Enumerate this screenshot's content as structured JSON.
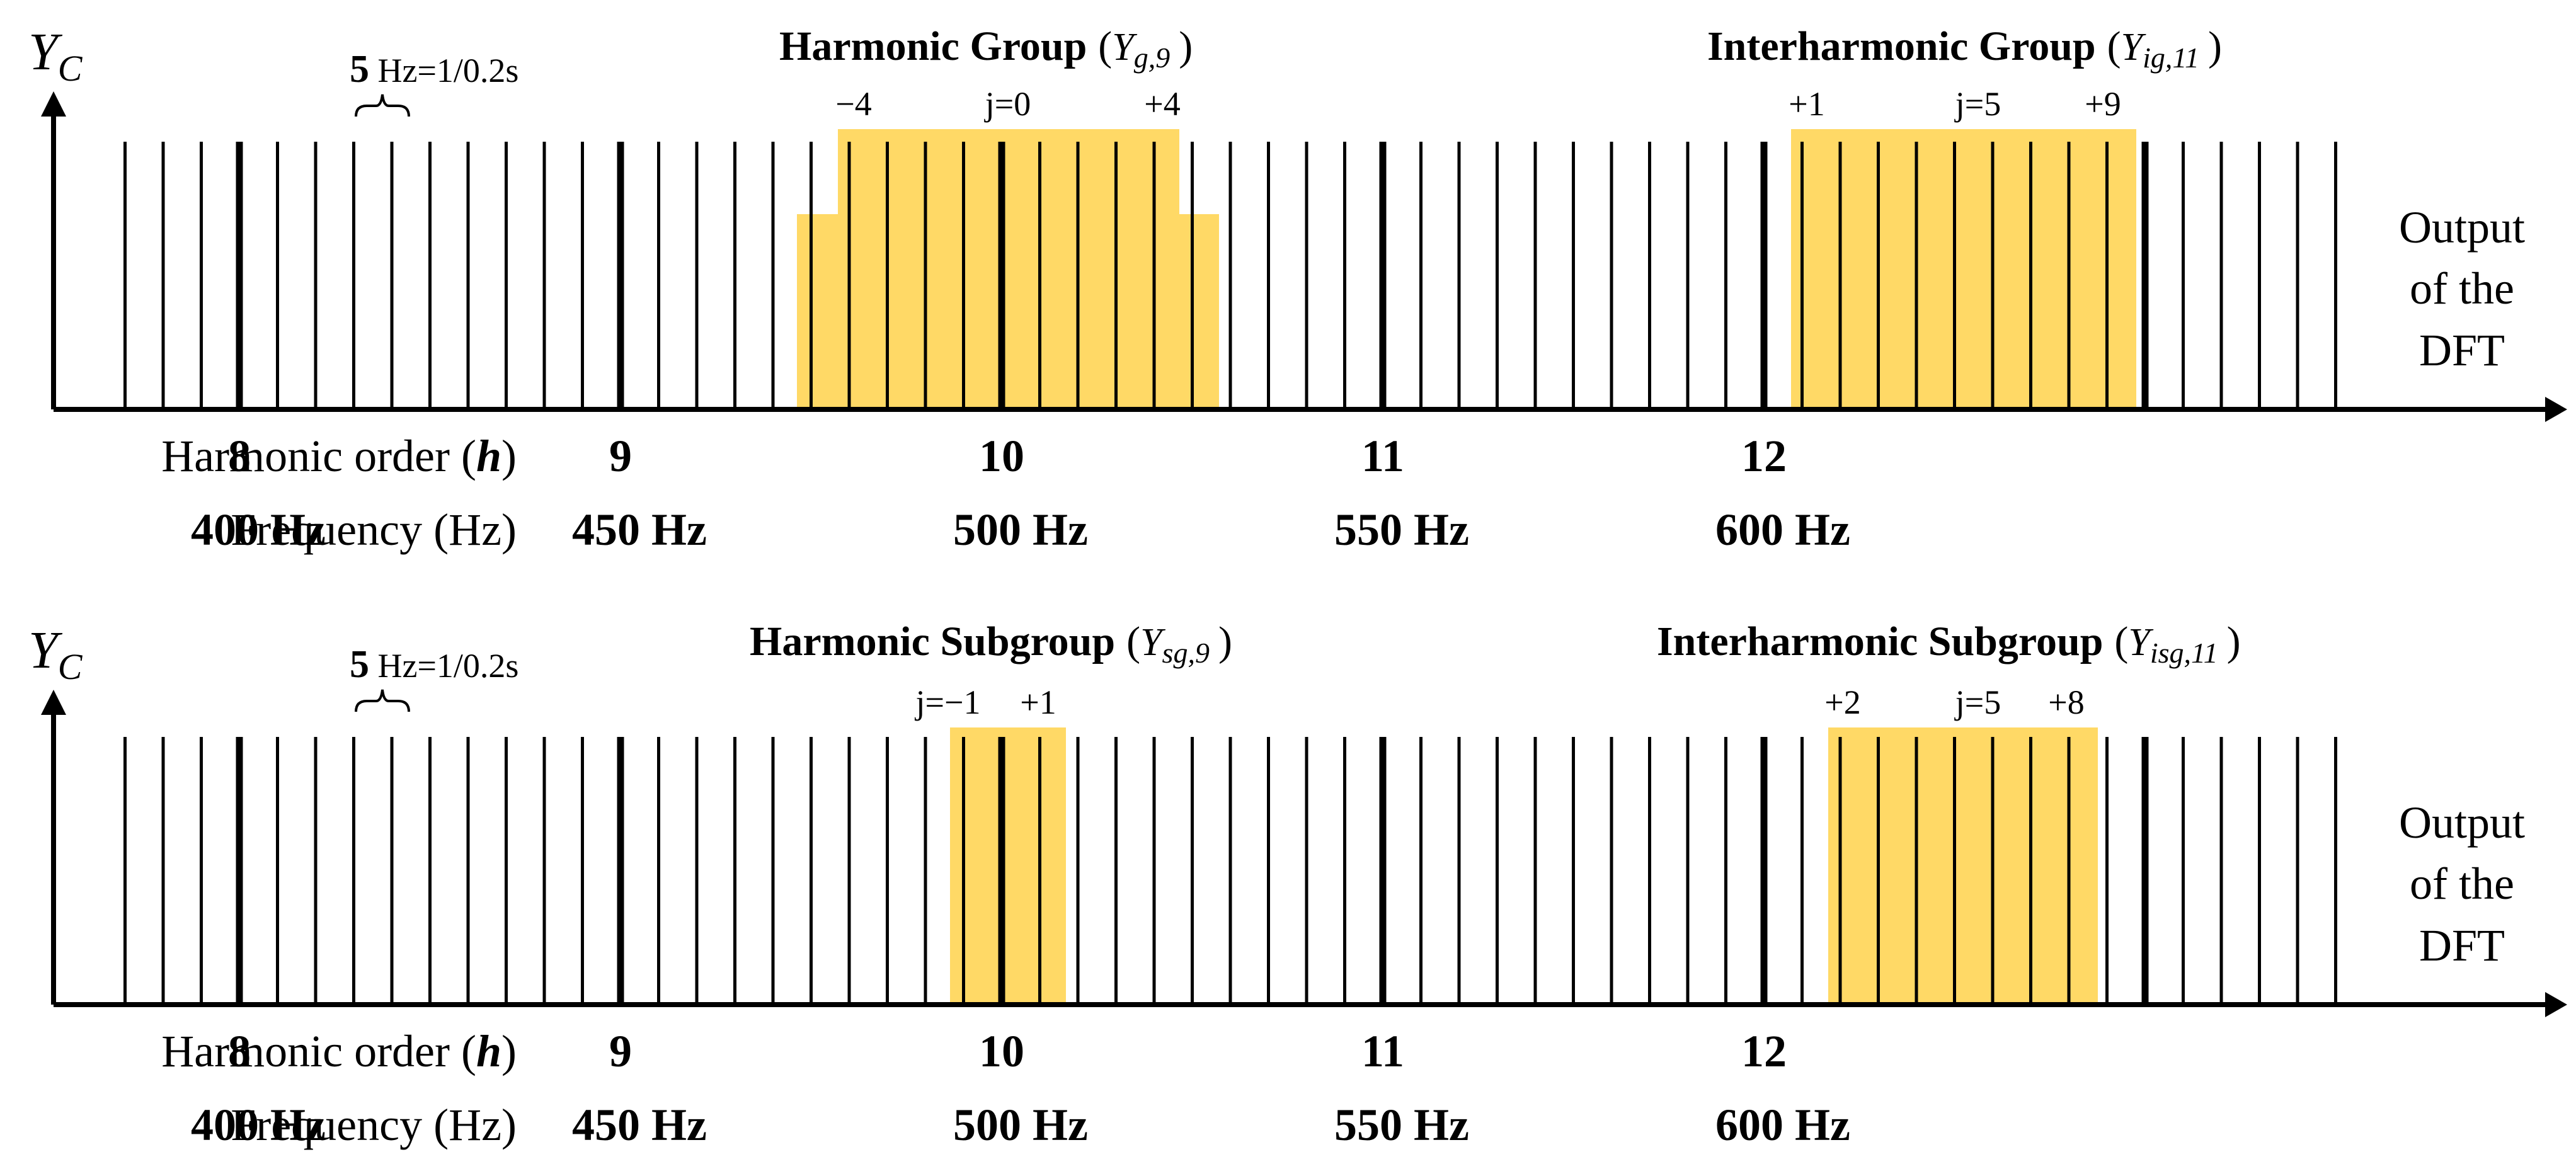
{
  "diagram": {
    "colors": {
      "highlight": "#FFD966",
      "ink": "#000000"
    },
    "panels": [
      {
        "id": "group",
        "y_axis_label": "Y",
        "y_axis_sub": "C",
        "spacing_note_bold": "5",
        "spacing_note": " Hz=1/0.2s",
        "output_label": [
          "Output",
          "of the",
          "DFT"
        ],
        "harmonic_order_label": "Harmonic order (",
        "harmonic_order_symbol": "h",
        "harmonic_order_close": ")",
        "frequency_label": "Frequency (Hz)",
        "harmonic_orders": [
          "8",
          "9",
          "10",
          "11",
          "12"
        ],
        "frequencies": [
          "400 Hz",
          "450 Hz",
          "500 Hz",
          "550 Hz",
          "600 Hz"
        ],
        "highlight_left": {
          "title": "Harmonic Group",
          "symbol_main": "Y",
          "symbol_sub": "g,9",
          "marks": [
            "−4",
            "j=0",
            "+4"
          ]
        },
        "highlight_right": {
          "title": "Interharmonic Group",
          "symbol_main": "Y",
          "symbol_sub": "ig,11",
          "marks": [
            "+1",
            "j=5",
            "+9"
          ]
        }
      },
      {
        "id": "subgroup",
        "y_axis_label": "Y",
        "y_axis_sub": "C",
        "spacing_note_bold": "5",
        "spacing_note": " Hz=1/0.2s",
        "output_label": [
          "Output",
          "of the",
          "DFT"
        ],
        "harmonic_order_label": "Harmonic order (",
        "harmonic_order_symbol": "h",
        "harmonic_order_close": ")",
        "frequency_label": "Frequency (Hz)",
        "harmonic_orders": [
          "8",
          "9",
          "10",
          "11",
          "12"
        ],
        "frequencies": [
          "400 Hz",
          "450 Hz",
          "500 Hz",
          "550 Hz",
          "600 Hz"
        ],
        "highlight_left": {
          "title": "Harmonic Subgroup",
          "symbol_main": "Y",
          "symbol_sub": "sg,9",
          "marks": [
            "j=−1",
            "+1"
          ]
        },
        "highlight_right": {
          "title": "Interharmonic Subgroup",
          "symbol_main": "Y",
          "symbol_sub": "isg,11",
          "marks": [
            "+2",
            "j=5",
            "+8"
          ]
        }
      }
    ]
  }
}
